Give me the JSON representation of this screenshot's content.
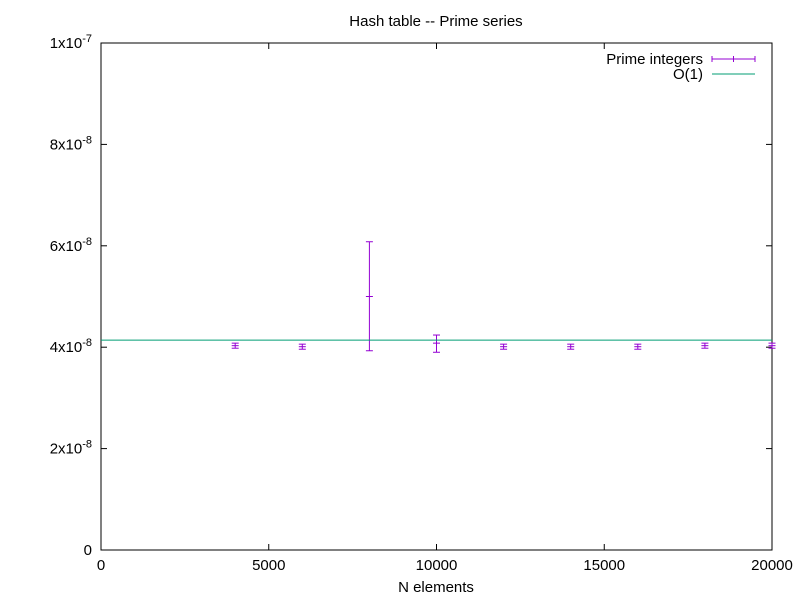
{
  "chart_data": {
    "type": "scatter",
    "title": "Hash table -- Prime series",
    "xlabel": "N elements",
    "ylabel": "",
    "xlim": [
      0,
      20000
    ],
    "ylim": [
      0,
      1e-07
    ],
    "x_ticks": [
      0,
      5000,
      10000,
      15000,
      20000
    ],
    "x_tick_labels": [
      "0",
      "5000",
      "10000",
      "15000",
      "20000"
    ],
    "y_ticks": [
      {
        "value": 0,
        "mantissa": "0",
        "exponent": ""
      },
      {
        "value": 2e-08,
        "mantissa": "2x10",
        "exponent": "-8"
      },
      {
        "value": 4e-08,
        "mantissa": "4x10",
        "exponent": "-8"
      },
      {
        "value": 6e-08,
        "mantissa": "6x10",
        "exponent": "-8"
      },
      {
        "value": 8e-08,
        "mantissa": "8x10",
        "exponent": "-8"
      },
      {
        "value": 1e-07,
        "mantissa": "1x10",
        "exponent": "-7"
      }
    ],
    "grid": false,
    "legend_position": "top-right",
    "series": [
      {
        "name": "Prime integers",
        "kind": "errorbars",
        "color": "#9400d3",
        "points": [
          {
            "x": 4000,
            "y": 4.03e-08,
            "ylow": 3.98e-08,
            "yhigh": 4.08e-08
          },
          {
            "x": 6000,
            "y": 4.01e-08,
            "ylow": 3.96e-08,
            "yhigh": 4.06e-08
          },
          {
            "x": 8000,
            "y": 5e-08,
            "ylow": 3.93e-08,
            "yhigh": 6.08e-08
          },
          {
            "x": 10000,
            "y": 4.08e-08,
            "ylow": 3.9e-08,
            "yhigh": 4.24e-08
          },
          {
            "x": 12000,
            "y": 4.01e-08,
            "ylow": 3.96e-08,
            "yhigh": 4.06e-08
          },
          {
            "x": 14000,
            "y": 4.01e-08,
            "ylow": 3.96e-08,
            "yhigh": 4.06e-08
          },
          {
            "x": 16000,
            "y": 4.01e-08,
            "ylow": 3.96e-08,
            "yhigh": 4.06e-08
          },
          {
            "x": 18000,
            "y": 4.03e-08,
            "ylow": 3.98e-08,
            "yhigh": 4.08e-08
          },
          {
            "x": 20000,
            "y": 4.03e-08,
            "ylow": 3.98e-08,
            "yhigh": 4.08e-08
          }
        ]
      },
      {
        "name": "O(1)",
        "kind": "line",
        "color": "#009e73",
        "constant": 4.14e-08
      }
    ]
  }
}
